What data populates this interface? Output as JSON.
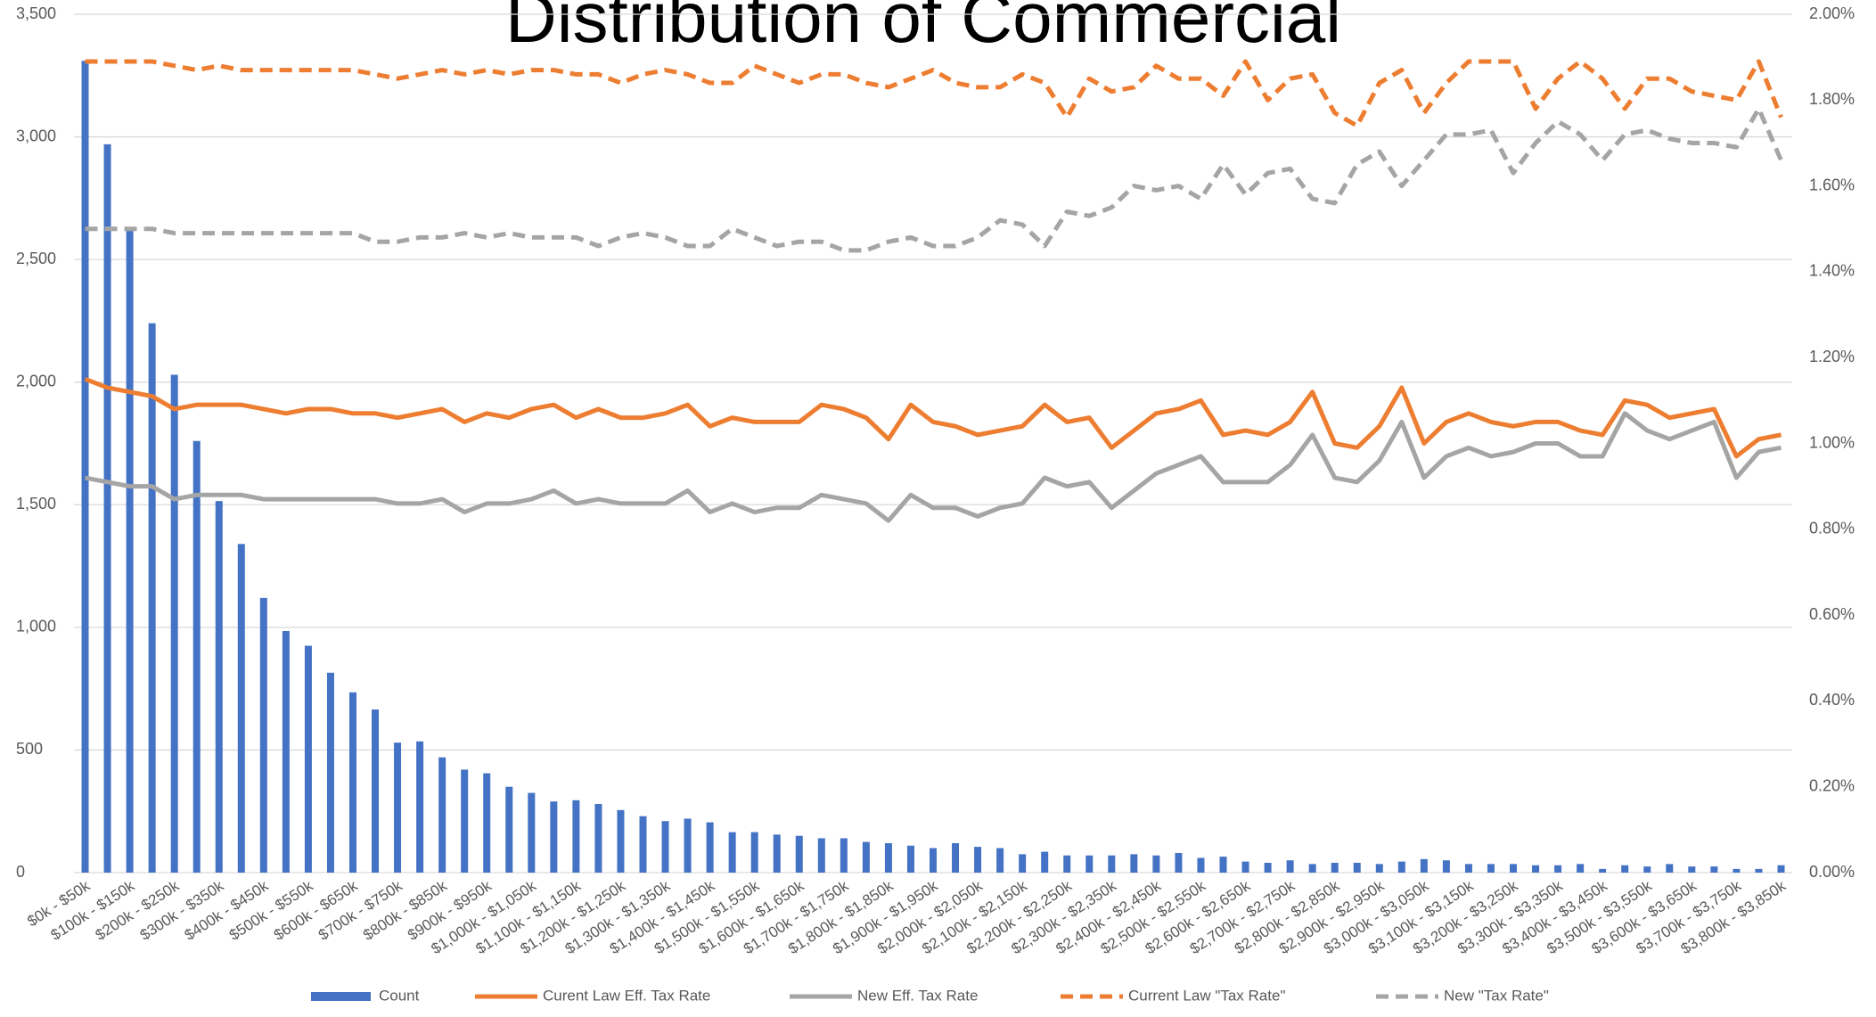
{
  "chart_data": {
    "type": "bar_line",
    "title": "Distribution of Commercial",
    "categories": [
      "$0k - $50k",
      null,
      "$100k - $150k",
      null,
      "$200k - $250k",
      null,
      "$300k - $350k",
      null,
      "$400k - $450k",
      null,
      "$500k - $550k",
      null,
      "$600k - $650k",
      null,
      "$700k - $750k",
      null,
      "$800k - $850k",
      null,
      "$900k - $950k",
      null,
      "$1,000k - $1,050k",
      null,
      "$1,100k - $1,150k",
      null,
      "$1,200k - $1,250k",
      null,
      "$1,300k - $1,350k",
      null,
      "$1,400k - $1,450k",
      null,
      "$1,500k - $1,550k",
      null,
      "$1,600k - $1,650k",
      null,
      "$1,700k - $1,750k",
      null,
      "$1,800k - $1,850k",
      null,
      "$1,900k - $1,950k",
      null,
      "$2,000k - $2,050k",
      null,
      "$2,100k - $2,150k",
      null,
      "$2,200k - $2,250k",
      null,
      "$2,300k - $2,350k",
      null,
      "$2,400k - $2,450k",
      null,
      "$2,500k - $2,550k",
      null,
      "$2,600k - $2,650k",
      null,
      "$2,700k - $2,750k",
      null,
      "$2,800k - $2,850k",
      null,
      "$2,900k - $2,950k",
      null,
      "$3,000k - $3,050k",
      null,
      "$3,100k - $3,150k",
      null,
      "$3,200k - $3,250k",
      null,
      "$3,300k - $3,350k",
      null,
      "$3,400k - $3,450k",
      null,
      "$3,500k - $3,550k",
      null,
      "$3,600k - $3,650k",
      null,
      "$3,700k - $3,750k",
      null,
      "$3,800k - $3,850k"
    ],
    "series": [
      {
        "name": "Count",
        "type": "bar",
        "color": "#4472c4",
        "values": [
          3310,
          2970,
          2620,
          2240,
          2030,
          1760,
          1515,
          1340,
          1120,
          985,
          925,
          815,
          735,
          665,
          530,
          535,
          470,
          420,
          405,
          350,
          325,
          290,
          295,
          280,
          255,
          230,
          210,
          220,
          205,
          165,
          165,
          155,
          150,
          140,
          140,
          125,
          120,
          110,
          100,
          120,
          105,
          100,
          75,
          85,
          70,
          70,
          70,
          75,
          70,
          80,
          60,
          65,
          45,
          40,
          50,
          35,
          40,
          40,
          35,
          45,
          55,
          50,
          35,
          35,
          35,
          30,
          30,
          35,
          15,
          30,
          25,
          35,
          25,
          25,
          15,
          15,
          30
        ]
      },
      {
        "name": "Curent Law Eff. Tax Rate",
        "type": "line",
        "style": "solid",
        "axis": "y2",
        "color": "#ed7d31",
        "values": [
          1.15,
          1.13,
          1.12,
          1.11,
          1.08,
          1.09,
          1.09,
          1.09,
          1.08,
          1.07,
          1.08,
          1.08,
          1.07,
          1.07,
          1.06,
          1.07,
          1.08,
          1.05,
          1.07,
          1.06,
          1.08,
          1.09,
          1.06,
          1.08,
          1.06,
          1.06,
          1.07,
          1.09,
          1.04,
          1.06,
          1.05,
          1.05,
          1.05,
          1.09,
          1.08,
          1.06,
          1.01,
          1.09,
          1.05,
          1.04,
          1.02,
          1.03,
          1.04,
          1.09,
          1.05,
          1.06,
          0.99,
          1.03,
          1.07,
          1.08,
          1.1,
          1.02,
          1.03,
          1.02,
          1.05,
          1.12,
          1.0,
          0.99,
          1.04,
          1.13,
          1.0,
          1.05,
          1.07,
          1.05,
          1.04,
          1.05,
          1.05,
          1.03,
          1.02,
          1.1,
          1.09,
          1.06,
          1.07,
          1.08,
          0.97,
          1.01,
          1.02
        ]
      },
      {
        "name": "New Eff. Tax Rate",
        "type": "line",
        "style": "solid",
        "axis": "y2",
        "color": "#a5a5a5",
        "values": [
          0.92,
          0.91,
          0.9,
          0.9,
          0.87,
          0.88,
          0.88,
          0.88,
          0.87,
          0.87,
          0.87,
          0.87,
          0.87,
          0.87,
          0.86,
          0.86,
          0.87,
          0.84,
          0.86,
          0.86,
          0.87,
          0.89,
          0.86,
          0.87,
          0.86,
          0.86,
          0.86,
          0.89,
          0.84,
          0.86,
          0.84,
          0.85,
          0.85,
          0.88,
          0.87,
          0.86,
          0.82,
          0.88,
          0.85,
          0.85,
          0.83,
          0.85,
          0.86,
          0.92,
          0.9,
          0.91,
          0.85,
          0.89,
          0.93,
          0.95,
          0.97,
          0.91,
          0.91,
          0.91,
          0.95,
          1.02,
          0.92,
          0.91,
          0.96,
          1.05,
          0.92,
          0.97,
          0.99,
          0.97,
          0.98,
          1.0,
          1.0,
          0.97,
          0.97,
          1.07,
          1.03,
          1.01,
          1.03,
          1.05,
          0.92,
          0.98,
          0.99
        ]
      },
      {
        "name": "Current Law \"Tax Rate\"",
        "type": "line",
        "style": "dashed",
        "axis": "y2",
        "color": "#ed7d31",
        "values": [
          1.89,
          1.89,
          1.89,
          1.89,
          1.88,
          1.87,
          1.88,
          1.87,
          1.87,
          1.87,
          1.87,
          1.87,
          1.87,
          1.86,
          1.85,
          1.86,
          1.87,
          1.86,
          1.87,
          1.86,
          1.87,
          1.87,
          1.86,
          1.86,
          1.84,
          1.86,
          1.87,
          1.86,
          1.84,
          1.84,
          1.88,
          1.86,
          1.84,
          1.86,
          1.86,
          1.84,
          1.83,
          1.85,
          1.87,
          1.84,
          1.83,
          1.83,
          1.86,
          1.84,
          1.76,
          1.85,
          1.82,
          1.83,
          1.88,
          1.85,
          1.85,
          1.81,
          1.89,
          1.8,
          1.85,
          1.86,
          1.77,
          1.74,
          1.84,
          1.87,
          1.77,
          1.84,
          1.89,
          1.89,
          1.89,
          1.78,
          1.85,
          1.89,
          1.85,
          1.78,
          1.85,
          1.85,
          1.82,
          1.81,
          1.8,
          1.89,
          1.76
        ]
      },
      {
        "name": "New \"Tax Rate\"",
        "type": "line",
        "style": "dashed",
        "axis": "y2",
        "color": "#a5a5a5",
        "values": [
          1.5,
          1.5,
          1.5,
          1.5,
          1.49,
          1.49,
          1.49,
          1.49,
          1.49,
          1.49,
          1.49,
          1.49,
          1.49,
          1.47,
          1.47,
          1.48,
          1.48,
          1.49,
          1.48,
          1.49,
          1.48,
          1.48,
          1.48,
          1.46,
          1.48,
          1.49,
          1.48,
          1.46,
          1.46,
          1.5,
          1.48,
          1.46,
          1.47,
          1.47,
          1.45,
          1.45,
          1.47,
          1.48,
          1.46,
          1.46,
          1.48,
          1.52,
          1.51,
          1.46,
          1.54,
          1.53,
          1.55,
          1.6,
          1.59,
          1.6,
          1.57,
          1.65,
          1.58,
          1.63,
          1.64,
          1.57,
          1.56,
          1.65,
          1.68,
          1.6,
          1.66,
          1.72,
          1.72,
          1.73,
          1.63,
          1.7,
          1.75,
          1.72,
          1.66,
          1.72,
          1.73,
          1.71,
          1.7,
          1.7,
          1.69,
          1.78,
          1.66
        ]
      }
    ],
    "ylim": [
      0,
      3500
    ],
    "yticks": [
      0,
      500,
      {
        "value": 1000,
        "label": "1,000"
      },
      {
        "value": 1500,
        "label": "1,500"
      },
      {
        "value": 2000,
        "label": "2,000"
      },
      {
        "value": 2500,
        "label": "2,500"
      },
      {
        "value": 3000,
        "label": "3,000"
      },
      {
        "value": 3500,
        "label": "3,500"
      }
    ],
    "y2lim": [
      0,
      2
    ],
    "y2ticks": [
      {
        "value": 0,
        "label": "0.00%"
      },
      {
        "value": 0.2,
        "label": "0.20%"
      },
      {
        "value": 0.4,
        "label": "0.40%"
      },
      {
        "value": 0.6,
        "label": "0.60%"
      },
      {
        "value": 0.8,
        "label": "0.80%"
      },
      {
        "value": 1.0,
        "label": "1.00%"
      },
      {
        "value": 1.2,
        "label": "1.20%"
      },
      {
        "value": 1.4,
        "label": "1.40%"
      },
      {
        "value": 1.6,
        "label": "1.60%"
      },
      {
        "value": 1.8,
        "label": "1.80%"
      },
      {
        "value": 2.0,
        "label": "2.00%"
      }
    ],
    "grid": true,
    "legend": "bottom"
  }
}
